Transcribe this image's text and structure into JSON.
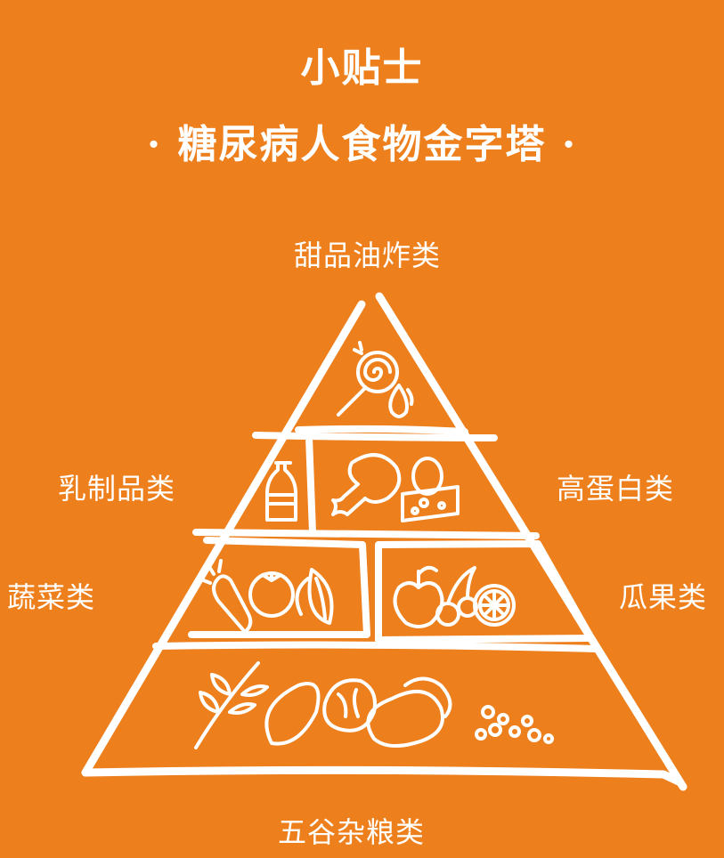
{
  "header": {
    "title": "小贴士",
    "subtitle": "· 糖尿病人食物金字塔 ·"
  },
  "labels": {
    "top": "甜品油炸类",
    "dairy": "乳制品类",
    "protein": "高蛋白类",
    "vegetables": "蔬菜类",
    "fruits": "瓜果类",
    "grains": "五谷杂粮类"
  },
  "colors": {
    "background": "#ED7F1C",
    "foreground": "#FFFFFF"
  },
  "icons": {
    "top": [
      "lollipop-icon",
      "oil-drop-icon"
    ],
    "dairy": [
      "milk-bottle-icon"
    ],
    "protein": [
      "chicken-leg-icon",
      "egg-icon",
      "cheese-icon"
    ],
    "vegetables": [
      "carrot-icon",
      "tomato-icon",
      "leafy-greens-icon"
    ],
    "fruits": [
      "apple-icon",
      "cherries-icon",
      "orange-slice-icon"
    ],
    "grains": [
      "wheat-icon",
      "sweet-potato-icon",
      "cabbage-icon",
      "potato-icon",
      "beans-icon"
    ]
  }
}
